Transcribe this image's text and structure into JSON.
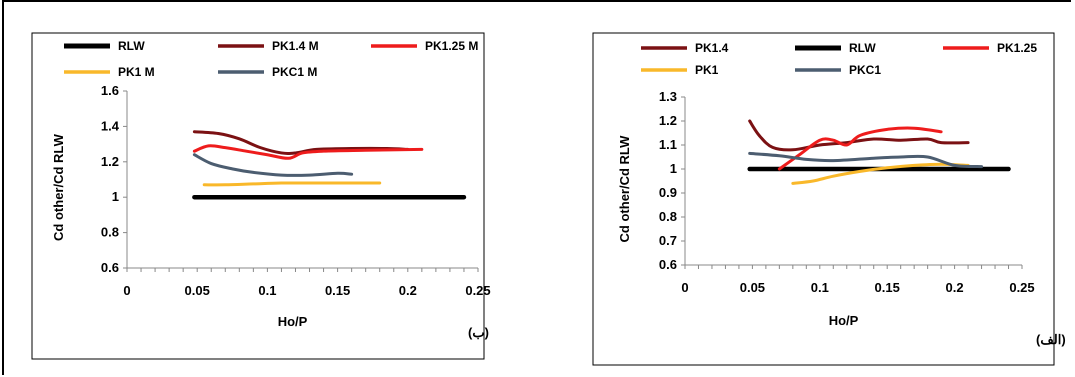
{
  "chart_data": [
    {
      "type": "line",
      "panel_label": "(ب)",
      "xlabel": "Ho/P",
      "ylabel": "Cd other/Cd RLW",
      "xlim": [
        0,
        0.25
      ],
      "ylim": [
        0.6,
        1.6
      ],
      "xticks": [
        "0",
        "0.05",
        "0.1",
        "0.15",
        "0.2",
        "0.25"
      ],
      "yticks": [
        "0.6",
        "0.8",
        "1",
        "1.2",
        "1.4",
        "1.6"
      ],
      "legend_position": "top",
      "series": [
        {
          "name": "RLW",
          "color": "#000000",
          "x": [
            0.048,
            0.24
          ],
          "y": [
            1.0,
            1.0
          ]
        },
        {
          "name": "PK1.4 M",
          "color": "#7b1113",
          "x": [
            0.048,
            0.065,
            0.08,
            0.095,
            0.11,
            0.12,
            0.135,
            0.16,
            0.185,
            0.2
          ],
          "y": [
            1.37,
            1.36,
            1.33,
            1.28,
            1.25,
            1.25,
            1.27,
            1.275,
            1.275,
            1.27
          ]
        },
        {
          "name": "PK1.25 M",
          "color": "#ee1c1c",
          "x": [
            0.048,
            0.058,
            0.07,
            0.085,
            0.1,
            0.115,
            0.125,
            0.14,
            0.17,
            0.21
          ],
          "y": [
            1.26,
            1.29,
            1.28,
            1.26,
            1.24,
            1.22,
            1.25,
            1.26,
            1.265,
            1.27
          ]
        },
        {
          "name": "PK1 M",
          "color": "#f9b82a",
          "x": [
            0.055,
            0.07,
            0.09,
            0.11,
            0.14,
            0.16,
            0.18
          ],
          "y": [
            1.07,
            1.07,
            1.075,
            1.08,
            1.08,
            1.08,
            1.08
          ]
        },
        {
          "name": "PKC1 M",
          "color": "#4c5d70",
          "x": [
            0.048,
            0.06,
            0.075,
            0.09,
            0.11,
            0.13,
            0.15,
            0.16
          ],
          "y": [
            1.24,
            1.19,
            1.16,
            1.14,
            1.125,
            1.125,
            1.135,
            1.13
          ]
        }
      ]
    },
    {
      "type": "line",
      "panel_label": "(الف)",
      "xlabel": "Ho/P",
      "ylabel": "Cd other/Cd RLW",
      "xlim": [
        0,
        0.25
      ],
      "ylim": [
        0.6,
        1.3
      ],
      "xticks": [
        "0",
        "0.05",
        "0.1",
        "0.15",
        "0.2",
        "0.25"
      ],
      "yticks": [
        "0.6",
        "0.7",
        "0.8",
        "0.9",
        "1",
        "1.1",
        "1.2",
        "1.3"
      ],
      "legend_position": "top",
      "series": [
        {
          "name": "PK1.4",
          "color": "#7b1113",
          "x": [
            0.048,
            0.055,
            0.065,
            0.08,
            0.1,
            0.12,
            0.14,
            0.16,
            0.18,
            0.19,
            0.21
          ],
          "y": [
            1.2,
            1.14,
            1.09,
            1.08,
            1.1,
            1.11,
            1.125,
            1.12,
            1.125,
            1.11,
            1.11
          ]
        },
        {
          "name": "RLW",
          "color": "#000000",
          "x": [
            0.048,
            0.24
          ],
          "y": [
            1.0,
            1.0
          ]
        },
        {
          "name": "PK1.25",
          "color": "#ee1c1c",
          "x": [
            0.07,
            0.085,
            0.1,
            0.11,
            0.12,
            0.13,
            0.15,
            0.17,
            0.19
          ],
          "y": [
            1.0,
            1.06,
            1.12,
            1.12,
            1.1,
            1.14,
            1.165,
            1.17,
            1.155
          ]
        },
        {
          "name": "PK1",
          "color": "#f9b82a",
          "x": [
            0.08,
            0.095,
            0.11,
            0.13,
            0.15,
            0.17,
            0.19,
            0.21
          ],
          "y": [
            0.94,
            0.95,
            0.97,
            0.99,
            1.005,
            1.015,
            1.02,
            1.015
          ]
        },
        {
          "name": "PKC1",
          "color": "#4c5d70",
          "x": [
            0.048,
            0.07,
            0.09,
            0.11,
            0.14,
            0.16,
            0.18,
            0.2,
            0.22
          ],
          "y": [
            1.065,
            1.055,
            1.04,
            1.035,
            1.045,
            1.05,
            1.05,
            1.015,
            1.01
          ]
        }
      ]
    }
  ]
}
